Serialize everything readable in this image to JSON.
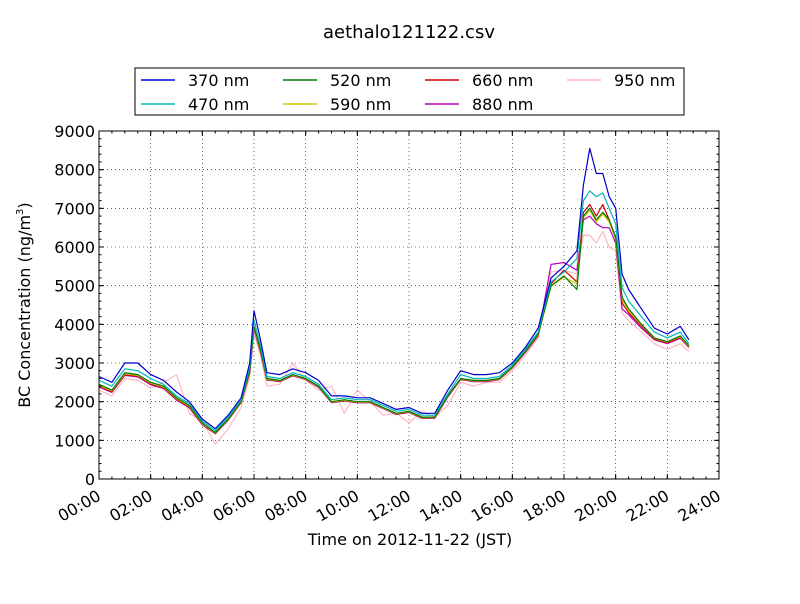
{
  "chart_data": {
    "type": "line",
    "title": "aethalo121122.csv",
    "xlabel": "Time on 2012-11-22 (JST)",
    "ylabel_main": "BC Concentration (ng/m",
    "ylabel_sup": "3",
    "ylabel_tail": ")",
    "xlim": [
      "00:00",
      "24:00"
    ],
    "ylim": [
      0,
      9000
    ],
    "grid": true,
    "legend_position": "top",
    "x_tick_labels": [
      "00:00",
      "02:00",
      "04:00",
      "06:00",
      "08:00",
      "10:00",
      "12:00",
      "14:00",
      "16:00",
      "18:00",
      "20:00",
      "22:00",
      "24:00"
    ],
    "y_tick_labels": [
      "0",
      "1000",
      "2000",
      "3000",
      "4000",
      "5000",
      "6000",
      "7000",
      "8000",
      "9000"
    ],
    "x": [
      "00:00",
      "00:30",
      "01:00",
      "01:30",
      "02:00",
      "02:30",
      "03:00",
      "03:30",
      "04:00",
      "04:30",
      "05:00",
      "05:30",
      "05:50",
      "06:00",
      "06:15",
      "06:30",
      "07:00",
      "07:30",
      "08:00",
      "08:30",
      "09:00",
      "09:30",
      "10:00",
      "10:30",
      "11:00",
      "11:30",
      "12:00",
      "12:30",
      "13:00",
      "13:30",
      "14:00",
      "14:30",
      "15:00",
      "15:30",
      "16:00",
      "16:30",
      "17:00",
      "17:30",
      "18:00",
      "18:30",
      "18:45",
      "19:00",
      "19:15",
      "19:30",
      "19:45",
      "20:00",
      "20:15",
      "20:30",
      "21:00",
      "21:30",
      "22:00",
      "22:30",
      "22:50"
    ],
    "series": [
      {
        "name": "370 nm",
        "color": "#0000cc",
        "values": [
          2650,
          2500,
          3000,
          3000,
          2700,
          2550,
          2250,
          2000,
          1550,
          1300,
          1650,
          2100,
          3000,
          4350,
          3600,
          2750,
          2700,
          2850,
          2750,
          2550,
          2150,
          2150,
          2100,
          2100,
          1950,
          1800,
          1850,
          1700,
          1700,
          2300,
          2800,
          2700,
          2700,
          2750,
          3000,
          3400,
          3900,
          5200,
          5500,
          5900,
          7600,
          8550,
          7900,
          7900,
          7300,
          7000,
          5300,
          4900,
          4400,
          3900,
          3750,
          3950,
          3600
        ]
      },
      {
        "name": "470 nm",
        "color": "#00b8b8",
        "values": [
          2550,
          2400,
          2850,
          2800,
          2600,
          2450,
          2150,
          1950,
          1500,
          1250,
          1600,
          2050,
          2900,
          4100,
          3450,
          2650,
          2600,
          2750,
          2650,
          2450,
          2050,
          2100,
          2050,
          2050,
          1900,
          1750,
          1800,
          1650,
          1650,
          2200,
          2700,
          2600,
          2600,
          2650,
          2950,
          3350,
          3800,
          5100,
          5350,
          5700,
          7200,
          7450,
          7300,
          7400,
          7000,
          6600,
          4950,
          4600,
          4200,
          3800,
          3650,
          3800,
          3500
        ]
      },
      {
        "name": "520 nm",
        "color": "#007700",
        "values": [
          2450,
          2300,
          2750,
          2700,
          2500,
          2400,
          2100,
          1900,
          1450,
          1200,
          1550,
          2000,
          2800,
          3950,
          3350,
          2600,
          2550,
          2700,
          2600,
          2400,
          2000,
          2050,
          2000,
          2000,
          1850,
          1700,
          1750,
          1600,
          1600,
          2150,
          2600,
          2550,
          2550,
          2600,
          2900,
          3300,
          3750,
          5000,
          5250,
          4900,
          6800,
          7000,
          6700,
          6900,
          6700,
          6250,
          4700,
          4400,
          4000,
          3650,
          3550,
          3700,
          3450
        ]
      },
      {
        "name": "590 nm",
        "color": "#cccc00",
        "values": [
          2420,
          2280,
          2720,
          2680,
          2480,
          2380,
          2080,
          1880,
          1430,
          1190,
          1540,
          1990,
          2780,
          3920,
          3320,
          2580,
          2540,
          2690,
          2590,
          2390,
          1990,
          2040,
          1990,
          1990,
          1840,
          1690,
          1740,
          1590,
          1590,
          2140,
          2590,
          2540,
          2540,
          2590,
          2890,
          3290,
          3730,
          4980,
          5220,
          5050,
          6750,
          6950,
          6650,
          6850,
          6650,
          6200,
          4650,
          4350,
          3980,
          3640,
          3540,
          3680,
          3430
        ]
      },
      {
        "name": "660 nm",
        "color": "#cc0000",
        "values": [
          2400,
          2260,
          2700,
          2660,
          2460,
          2360,
          2060,
          1860,
          1420,
          1180,
          1530,
          1980,
          2760,
          3900,
          3300,
          2570,
          2530,
          2680,
          2580,
          2380,
          1980,
          2030,
          1980,
          1980,
          1830,
          1680,
          1730,
          1580,
          1580,
          2130,
          2580,
          2530,
          2530,
          2580,
          2880,
          3280,
          3720,
          5050,
          5400,
          5100,
          6900,
          7100,
          6800,
          7100,
          6700,
          6250,
          4550,
          4300,
          3950,
          3620,
          3520,
          3660,
          3420
        ]
      },
      {
        "name": "880 nm",
        "color": "#bb00bb",
        "values": [
          2380,
          2240,
          2680,
          2640,
          2440,
          2340,
          2040,
          1840,
          1400,
          1170,
          1520,
          1970,
          2740,
          3880,
          3280,
          2560,
          2520,
          2670,
          2570,
          2370,
          1970,
          2020,
          1970,
          1970,
          1820,
          1670,
          1720,
          1570,
          1570,
          2120,
          2570,
          2520,
          2520,
          2570,
          2870,
          3270,
          3700,
          5550,
          5600,
          5400,
          6700,
          6800,
          6600,
          6500,
          6500,
          6100,
          4400,
          4250,
          3900,
          3600,
          3500,
          3640,
          3400
        ]
      },
      {
        "name": "950 nm",
        "color": "#ffb6c1",
        "values": [
          2300,
          2150,
          2600,
          2550,
          2350,
          2500,
          2700,
          1700,
          1500,
          900,
          1300,
          1850,
          2650,
          3750,
          3200,
          2400,
          2450,
          3000,
          2550,
          2300,
          2400,
          1700,
          2300,
          2000,
          1650,
          1700,
          1450,
          1750,
          1600,
          1900,
          2500,
          2400,
          2500,
          2500,
          2800,
          3200,
          3650,
          5350,
          5400,
          5300,
          6300,
          6300,
          6100,
          6400,
          6000,
          5900,
          4300,
          4100,
          3800,
          3500,
          3350,
          3500,
          3300
        ]
      }
    ]
  }
}
